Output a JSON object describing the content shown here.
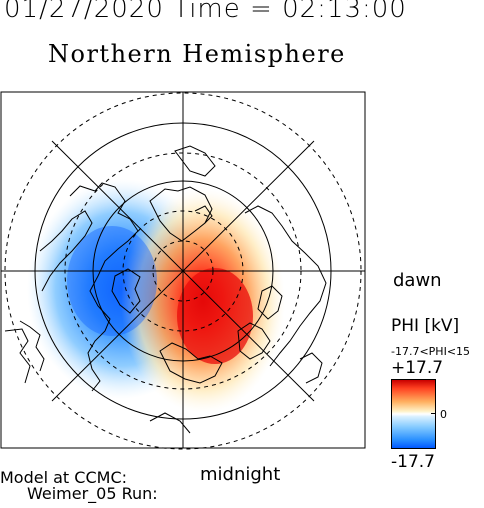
{
  "header": {
    "datetime": "01/27/2020 Time = 02:13:00",
    "hemisphere": "Northern Hemisphere"
  },
  "orientation": {
    "dawn_label": "dawn",
    "midnight_label": "midnight"
  },
  "colorbar": {
    "title": "PHI [kV]",
    "range_text": "-17.7<PHI<15",
    "max_label": "+17.7",
    "zero_label": "0",
    "min_label": "-17.7",
    "colors": {
      "positive": "#d40000",
      "neutral": "#ffffff",
      "negative": "#0060ff"
    }
  },
  "credits": {
    "line1": "Model at CCMC:",
    "line2": "Weimer_05 Run:"
  },
  "map": {
    "projection": "polar stereographic, north pole centered",
    "features": [
      "latitude circles",
      "meridian grid",
      "coastlines",
      "electric potential contours"
    ]
  }
}
